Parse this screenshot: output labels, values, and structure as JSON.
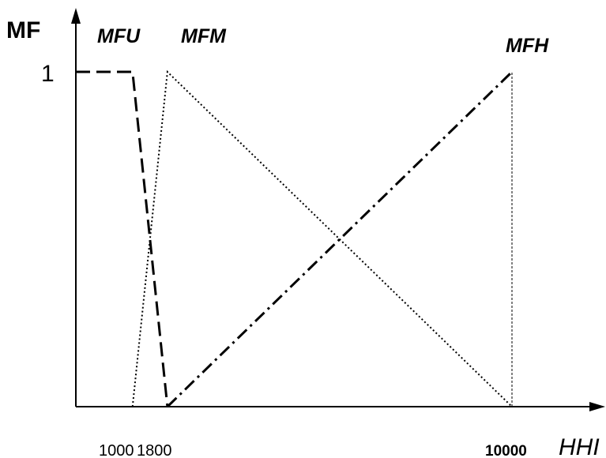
{
  "chart_data": {
    "type": "line",
    "title": "",
    "ylabel": "MF",
    "xlabel": "HHI",
    "xlim": [
      0,
      10000
    ],
    "ylim": [
      0,
      1
    ],
    "grid": false,
    "legend": "none",
    "x_ticks": [
      "1000",
      "1800",
      "10000"
    ],
    "y_ticks": [
      "1"
    ],
    "series": [
      {
        "name": "MFU",
        "style": "dashed",
        "color": "#000000",
        "x": [
          0,
          1300,
          2100
        ],
        "y": [
          1,
          1,
          0
        ]
      },
      {
        "name": "MFM",
        "style": "dotted",
        "color": "#000000",
        "x": [
          1300,
          2100,
          10000
        ],
        "y": [
          0,
          1,
          0
        ]
      },
      {
        "name": "MFH",
        "style": "dash-dot",
        "color": "#000000",
        "x": [
          2100,
          10000
        ],
        "y": [
          0,
          1
        ]
      }
    ],
    "reference_lines": [
      {
        "style": "thin-dashed",
        "x": [
          10000,
          10000
        ],
        "y": [
          0,
          1
        ]
      }
    ]
  }
}
